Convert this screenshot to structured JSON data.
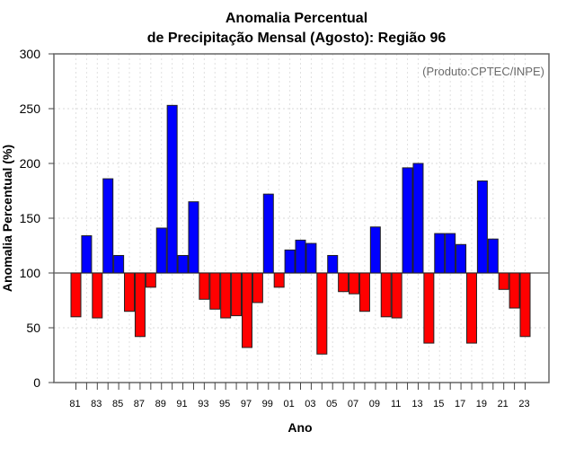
{
  "chart_data": {
    "type": "bar",
    "title_line1": "Anomalia Percentual",
    "title_line2": "de Precipitação Mensal (Agosto): Região 96",
    "xlabel": "Ano",
    "ylabel": "Anomalia Percentual (%)",
    "annotation": "(Produto:CPTEC/INPE)",
    "annotation_position": "top-right",
    "ylim": [
      0,
      300
    ],
    "yticks": [
      0,
      50,
      100,
      150,
      200,
      250,
      300
    ],
    "baseline": 100,
    "grid": true,
    "colors": {
      "above": "#0000ff",
      "below": "#ff0000",
      "border": "#222222"
    },
    "categories": [
      "81",
      "82",
      "83",
      "84",
      "85",
      "86",
      "87",
      "88",
      "89",
      "90",
      "91",
      "92",
      "93",
      "94",
      "95",
      "96",
      "97",
      "98",
      "99",
      "00",
      "01",
      "02",
      "03",
      "04",
      "05",
      "06",
      "07",
      "08",
      "09",
      "10",
      "11",
      "12",
      "13",
      "14",
      "15",
      "16",
      "17",
      "18",
      "19",
      "20",
      "21",
      "22",
      "23"
    ],
    "xtick_labels": [
      "81",
      "83",
      "85",
      "87",
      "89",
      "91",
      "93",
      "95",
      "97",
      "99",
      "01",
      "03",
      "05",
      "07",
      "09",
      "11",
      "13",
      "15",
      "17",
      "19",
      "21",
      "23"
    ],
    "values": [
      60,
      134,
      59,
      186,
      116,
      65,
      42,
      87,
      141,
      253,
      116,
      165,
      76,
      67,
      59,
      61,
      32,
      73,
      172,
      87,
      121,
      130,
      127,
      26,
      116,
      83,
      81,
      65,
      142,
      60,
      59,
      196,
      200,
      36,
      136,
      136,
      126,
      36,
      184,
      131,
      85,
      68,
      42
    ]
  }
}
